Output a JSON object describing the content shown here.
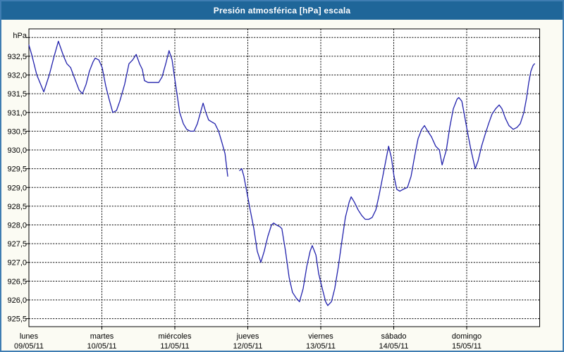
{
  "window": {
    "title": "Presión atmosférica [hPa] escala"
  },
  "axis": {
    "unit_label": "hPa",
    "y_tick_labels": [
      "932,5",
      "932,0",
      "931,5",
      "931,0",
      "930,5",
      "930,0",
      "929,5",
      "929,0",
      "928,5",
      "928,0",
      "927,5",
      "927,0",
      "926,5",
      "926,0",
      "925,5"
    ],
    "days": [
      {
        "name": "lunes",
        "date": "09/05/11"
      },
      {
        "name": "martes",
        "date": "10/05/11"
      },
      {
        "name": "miércoles",
        "date": "11/05/11"
      },
      {
        "name": "jueves",
        "date": "12/05/11"
      },
      {
        "name": "viernes",
        "date": "13/05/11"
      },
      {
        "name": "sábado",
        "date": "14/05/11"
      },
      {
        "name": "domingo",
        "date": "15/05/11"
      }
    ]
  },
  "colors": {
    "frame": "#3f7db2",
    "title_bar": "#1f6699",
    "line": "#2121ac",
    "grid": "#000000",
    "plot_bg": "#ffffff",
    "content_bg": "#fbfbf3",
    "text": "#000000"
  },
  "chart_data": {
    "type": "line",
    "title": "Presión atmosférica [hPa] escala",
    "ylabel": "hPa",
    "ylim": [
      925.5,
      933.0
    ],
    "y_gridline_step": 0.5,
    "y_top_gridline_unlabeled": 933.0,
    "grid": "dashed black on white",
    "legend_position": "none",
    "x_unit": "hours since lunes 09/05/11 00:00",
    "x_tick_labels": [
      "lunes 09/05/11",
      "martes 10/05/11",
      "miércoles 11/05/11",
      "jueves 12/05/11",
      "viernes 13/05/11",
      "sábado 14/05/11",
      "domingo 15/05/11"
    ],
    "data_gap": "short gap (null) miércoles evening ≈ h65–h69",
    "series": [
      {
        "name": "Presión atmosférica",
        "points": [
          [
            0,
            932.8
          ],
          [
            0.9,
            932.55
          ],
          [
            2.6,
            932.0
          ],
          [
            4.9,
            931.55
          ],
          [
            6.7,
            932.0
          ],
          [
            8.3,
            932.5
          ],
          [
            9.7,
            932.9
          ],
          [
            11.4,
            932.5
          ],
          [
            12.5,
            932.3
          ],
          [
            13.7,
            932.2
          ],
          [
            15.1,
            931.9
          ],
          [
            16.5,
            931.6
          ],
          [
            17.6,
            931.5
          ],
          [
            18.8,
            931.75
          ],
          [
            19.9,
            932.1
          ],
          [
            21.1,
            932.35
          ],
          [
            21.8,
            932.45
          ],
          [
            23,
            932.4
          ],
          [
            24.1,
            932.2
          ],
          [
            25.3,
            931.7
          ],
          [
            26.4,
            931.35
          ],
          [
            27.6,
            931.0
          ],
          [
            28.8,
            931.05
          ],
          [
            29.9,
            931.3
          ],
          [
            31.5,
            931.75
          ],
          [
            32.9,
            932.3
          ],
          [
            34.1,
            932.4
          ],
          [
            35.3,
            932.55
          ],
          [
            36.4,
            932.3
          ],
          [
            37.3,
            932.15
          ],
          [
            38,
            931.85
          ],
          [
            39.2,
            931.8
          ],
          [
            41.5,
            931.8
          ],
          [
            42.7,
            931.8
          ],
          [
            43.8,
            931.95
          ],
          [
            45,
            932.3
          ],
          [
            46.1,
            932.65
          ],
          [
            47.1,
            932.4
          ],
          [
            47.8,
            932.0
          ],
          [
            48.7,
            931.5
          ],
          [
            49.6,
            931.0
          ],
          [
            50.8,
            930.7
          ],
          [
            51.9,
            930.55
          ],
          [
            53.1,
            930.5
          ],
          [
            54.3,
            930.5
          ],
          [
            55.4,
            930.7
          ],
          [
            56.6,
            931.05
          ],
          [
            57.3,
            931.25
          ],
          [
            58.2,
            931.0
          ],
          [
            59.1,
            930.8
          ],
          [
            60.1,
            930.75
          ],
          [
            61.2,
            930.7
          ],
          [
            62.4,
            930.5
          ],
          [
            63.5,
            930.2
          ],
          [
            64.5,
            929.9
          ],
          [
            65.4,
            929.3
          ],
          [
            67,
            null
          ],
          [
            69.3,
            929.45
          ],
          [
            70,
            929.5
          ],
          [
            70.7,
            929.3
          ],
          [
            71.4,
            929.0
          ],
          [
            72.8,
            928.4
          ],
          [
            74,
            927.9
          ],
          [
            75.1,
            927.3
          ],
          [
            76.3,
            927.0
          ],
          [
            77.4,
            927.3
          ],
          [
            78.6,
            927.7
          ],
          [
            79.8,
            928.0
          ],
          [
            80.5,
            928.05
          ],
          [
            81.4,
            928.0
          ],
          [
            82.6,
            927.95
          ],
          [
            83.2,
            927.9
          ],
          [
            84.4,
            927.3
          ],
          [
            85.6,
            926.6
          ],
          [
            86.7,
            926.2
          ],
          [
            87.9,
            926.05
          ],
          [
            89,
            925.95
          ],
          [
            90.2,
            926.3
          ],
          [
            91.4,
            926.9
          ],
          [
            92.5,
            927.3
          ],
          [
            93.2,
            927.45
          ],
          [
            94.4,
            927.2
          ],
          [
            95.3,
            926.7
          ],
          [
            96.5,
            926.3
          ],
          [
            97.6,
            925.95
          ],
          [
            98.3,
            925.85
          ],
          [
            99.5,
            925.95
          ],
          [
            100.6,
            926.3
          ],
          [
            101.8,
            926.9
          ],
          [
            103,
            927.6
          ],
          [
            104.1,
            928.2
          ],
          [
            105.3,
            928.6
          ],
          [
            106,
            928.75
          ],
          [
            107.1,
            928.6
          ],
          [
            108.3,
            928.4
          ],
          [
            109.5,
            928.25
          ],
          [
            110.6,
            928.15
          ],
          [
            111.8,
            928.15
          ],
          [
            112.9,
            928.2
          ],
          [
            114.1,
            928.4
          ],
          [
            115.2,
            928.8
          ],
          [
            116.4,
            929.3
          ],
          [
            117.6,
            929.8
          ],
          [
            118.3,
            930.1
          ],
          [
            119.2,
            929.8
          ],
          [
            120.1,
            929.3
          ],
          [
            121,
            928.95
          ],
          [
            122,
            928.9
          ],
          [
            123.1,
            928.95
          ],
          [
            124.5,
            929.0
          ],
          [
            125.7,
            929.3
          ],
          [
            126.8,
            929.8
          ],
          [
            128,
            930.3
          ],
          [
            129.2,
            930.55
          ],
          [
            130.1,
            930.65
          ],
          [
            131.2,
            930.5
          ],
          [
            132.4,
            930.35
          ],
          [
            133.8,
            930.1
          ],
          [
            135,
            930.0
          ],
          [
            135.9,
            929.6
          ],
          [
            137.3,
            930.0
          ],
          [
            138.4,
            930.6
          ],
          [
            139.6,
            931.1
          ],
          [
            140.8,
            931.35
          ],
          [
            141.4,
            931.4
          ],
          [
            142.4,
            931.3
          ],
          [
            143.1,
            931.0
          ],
          [
            144.2,
            930.5
          ],
          [
            145.4,
            930.0
          ],
          [
            146.8,
            929.5
          ],
          [
            147.7,
            929.7
          ],
          [
            148.9,
            930.1
          ],
          [
            150,
            930.4
          ],
          [
            151.2,
            930.7
          ],
          [
            152.3,
            930.95
          ],
          [
            153.5,
            931.1
          ],
          [
            154.7,
            931.2
          ],
          [
            155.6,
            931.1
          ],
          [
            156.7,
            930.85
          ],
          [
            157.9,
            930.65
          ],
          [
            159.3,
            930.55
          ],
          [
            160.5,
            930.6
          ],
          [
            161.6,
            930.7
          ],
          [
            162.8,
            931.0
          ],
          [
            163.7,
            931.4
          ],
          [
            164.4,
            931.8
          ],
          [
            165.1,
            932.1
          ],
          [
            165.8,
            932.25
          ],
          [
            166.3,
            932.3
          ]
        ]
      }
    ]
  }
}
